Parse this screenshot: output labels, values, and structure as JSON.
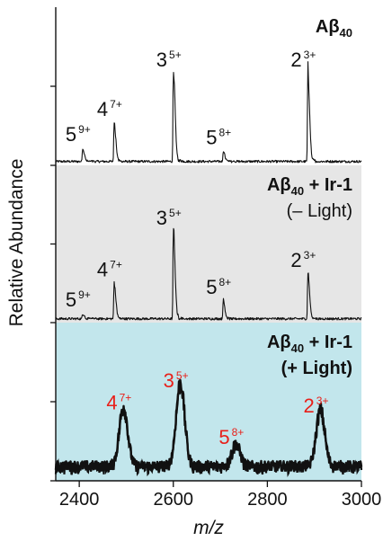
{
  "chart_data": {
    "type": "line",
    "xlabel": "m/z",
    "ylabel": "Relative Abundance",
    "xlim": [
      2350,
      3000
    ],
    "xticks": [
      "2400",
      "2600",
      "2800",
      "3000"
    ],
    "x_tick_values": [
      2400,
      2600,
      2800,
      3000
    ],
    "panels": [
      {
        "title_main": "Aβ",
        "title_sub": "40",
        "title_rest": "",
        "title_line2": "",
        "background": "#ffffff",
        "peaks": [
          {
            "mz": 2407,
            "height": 0.08,
            "n": "5",
            "charge": "9+",
            "color": "#111111"
          },
          {
            "mz": 2474,
            "height": 0.24,
            "n": "4",
            "charge": "7+",
            "color": "#111111"
          },
          {
            "mz": 2600,
            "height": 0.55,
            "n": "3",
            "charge": "5+",
            "color": "#111111"
          },
          {
            "mz": 2706,
            "height": 0.06,
            "n": "5",
            "charge": "8+",
            "color": "#111111"
          },
          {
            "mz": 2886,
            "height": 0.55,
            "n": "2",
            "charge": "3+",
            "color": "#111111"
          }
        ]
      },
      {
        "title_main": "Aβ",
        "title_sub": "40",
        "title_rest": " + Ir-1",
        "title_line2": "(– Light)",
        "background": "#e6e6e6",
        "peaks": [
          {
            "mz": 2407,
            "height": 0.03,
            "n": "5",
            "charge": "9+",
            "color": "#111111"
          },
          {
            "mz": 2474,
            "height": 0.22,
            "n": "4",
            "charge": "7+",
            "color": "#111111"
          },
          {
            "mz": 2600,
            "height": 0.55,
            "n": "3",
            "charge": "5+",
            "color": "#111111"
          },
          {
            "mz": 2706,
            "height": 0.11,
            "n": "5",
            "charge": "8+",
            "color": "#111111"
          },
          {
            "mz": 2886,
            "height": 0.28,
            "n": "2",
            "charge": "3+",
            "color": "#111111"
          }
        ]
      },
      {
        "title_main": "Aβ",
        "title_sub": "40",
        "title_rest": " + Ir-1",
        "title_line2": "(+ Light)",
        "background": "#c2e6ec",
        "peaks": [
          {
            "mz": 2494,
            "height": 0.35,
            "n": "4",
            "charge": "7+",
            "color": "#e8201a"
          },
          {
            "mz": 2615,
            "height": 0.49,
            "n": "3",
            "charge": "5+",
            "color": "#e8201a"
          },
          {
            "mz": 2733,
            "height": 0.13,
            "n": "5",
            "charge": "8+",
            "color": "#e8201a"
          },
          {
            "mz": 2913,
            "height": 0.33,
            "n": "2",
            "charge": "3+",
            "color": "#e8201a"
          }
        ]
      }
    ]
  }
}
